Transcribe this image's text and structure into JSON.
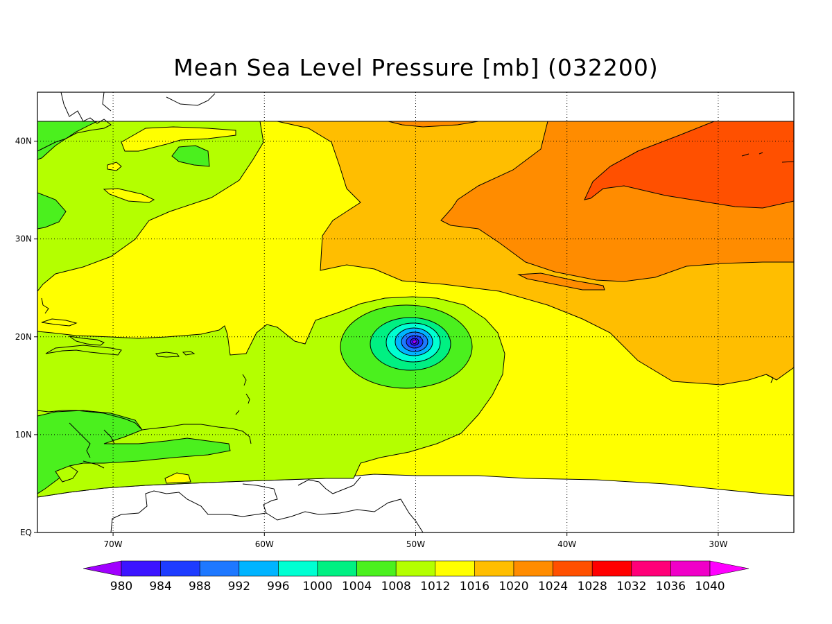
{
  "title": "Mean Sea Level Pressure [mb] (032200)",
  "map": {
    "lon_range": [
      -75,
      -25
    ],
    "lat_range": [
      0,
      45
    ],
    "x_ticks": [
      {
        "lon": -70,
        "label": "70W"
      },
      {
        "lon": -60,
        "label": "60W"
      },
      {
        "lon": -50,
        "label": "50W"
      },
      {
        "lon": -40,
        "label": "40W"
      },
      {
        "lon": -30,
        "label": "30W"
      }
    ],
    "y_ticks": [
      {
        "lat": 0,
        "label": "EQ"
      },
      {
        "lat": 10,
        "label": "10N"
      },
      {
        "lat": 20,
        "label": "20N"
      },
      {
        "lat": 30,
        "label": "30N"
      },
      {
        "lat": 40,
        "label": "40N"
      }
    ],
    "grid": "dotted",
    "low_center": {
      "lon": -50,
      "lat": 19.3,
      "pressure_min": 980
    }
  },
  "colorbar": {
    "levels": [
      "980",
      "984",
      "988",
      "992",
      "996",
      "1000",
      "1004",
      "1008",
      "1012",
      "1016",
      "1020",
      "1024",
      "1028",
      "1032",
      "1036",
      "1040"
    ],
    "colors": [
      "#a000ff",
      "#3c14ff",
      "#1e3cff",
      "#1e78ff",
      "#00b4ff",
      "#00ffd2",
      "#00f082",
      "#4bf01e",
      "#b4ff00",
      "#ffff00",
      "#ffbe00",
      "#ff8c00",
      "#ff5000",
      "#ff0000",
      "#ff0078",
      "#f000c8",
      "#ff00ff"
    ]
  }
}
